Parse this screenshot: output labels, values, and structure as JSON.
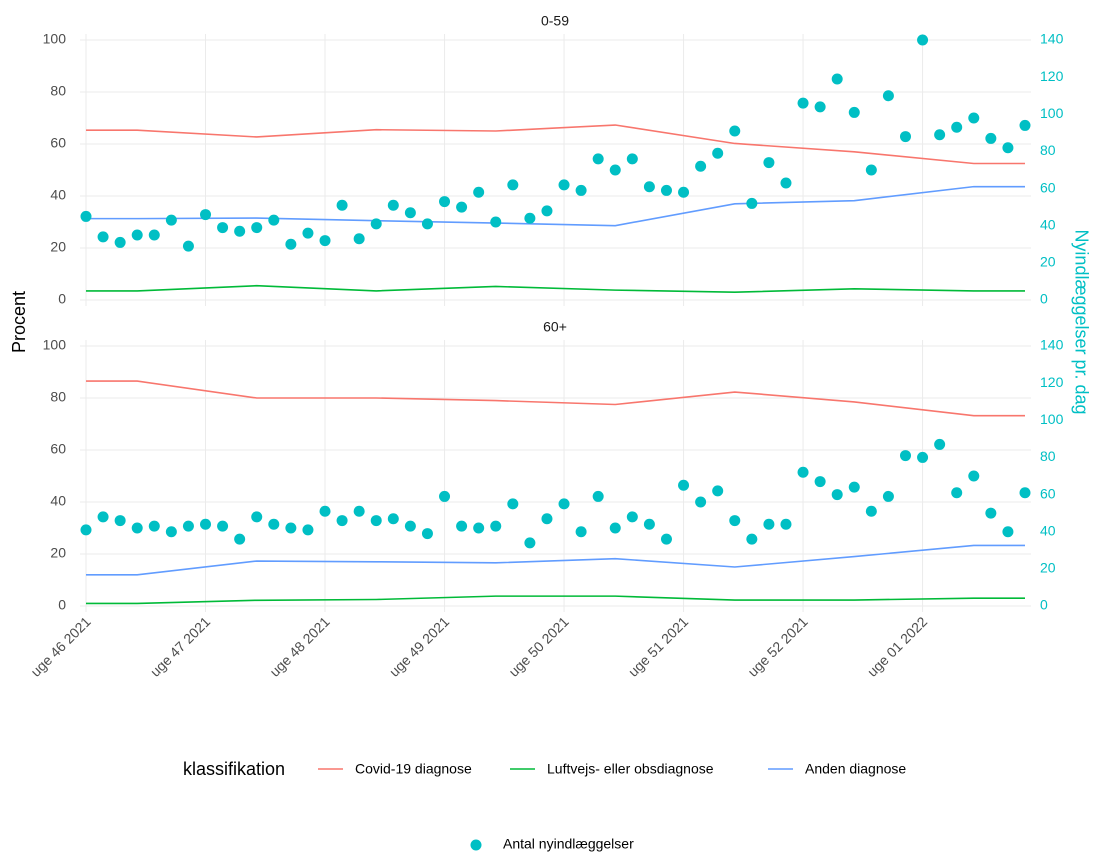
{
  "ylabel": "Procent",
  "y2label": "Nyindlæggelser pr. dag",
  "legend_title": "klassifikation",
  "xlim": [
    0,
    55
  ],
  "xticks": [
    {
      "value": 0,
      "label": "uge 46 2021"
    },
    {
      "value": 7,
      "label": "uge 47 2021"
    },
    {
      "value": 14,
      "label": "uge 48 2021"
    },
    {
      "value": 21,
      "label": "uge 49 2021"
    },
    {
      "value": 28,
      "label": "uge 50 2021"
    },
    {
      "value": 35,
      "label": "uge 51 2021"
    },
    {
      "value": 42,
      "label": "uge 52 2021"
    },
    {
      "value": 49,
      "label": "uge 01 2022"
    }
  ],
  "chart_data": [
    {
      "type": "line",
      "title": "0-59",
      "ylim": [
        0,
        100
      ],
      "yticks": [
        0,
        20,
        40,
        60,
        80,
        100
      ],
      "y2lim": [
        0,
        140
      ],
      "y2ticks": [
        0,
        20,
        40,
        60,
        80,
        100,
        120,
        140
      ],
      "grid": true,
      "series": [
        {
          "name": "Covid-19 diagnose",
          "color": "#F8766D",
          "x": [
            0,
            3,
            10,
            17,
            24,
            31,
            38,
            45,
            52,
            55
          ],
          "values": [
            65.3,
            65.3,
            62.7,
            65.5,
            65,
            67.3,
            60.2,
            57,
            52.5,
            52.5
          ]
        },
        {
          "name": "Luftvejs- eller obsdiagnose",
          "color": "#00BA38",
          "x": [
            0,
            3,
            10,
            17,
            24,
            31,
            38,
            45,
            52,
            55
          ],
          "values": [
            3.5,
            3.5,
            5.5,
            3.5,
            5.2,
            3.8,
            3,
            4.3,
            3.5,
            3.5
          ]
        },
        {
          "name": "Anden diagnose",
          "color": "#619CFF",
          "x": [
            0,
            3,
            10,
            17,
            24,
            31,
            38,
            45,
            52,
            55
          ],
          "values": [
            31.3,
            31.3,
            31.5,
            30.5,
            29.6,
            28.6,
            37,
            38.2,
            43.6,
            43.6
          ]
        },
        {
          "name": "Antal nyindlæggelser",
          "type": "scatter",
          "axis": "y2",
          "color": "#00BFC4",
          "x": [
            0,
            1,
            2,
            3,
            4,
            5,
            6,
            7,
            8,
            9,
            10,
            11,
            12,
            13,
            14,
            15,
            16,
            17,
            18,
            19,
            20,
            21,
            22,
            23,
            24,
            25,
            26,
            27,
            28,
            29,
            30,
            31,
            32,
            33,
            34,
            35,
            36,
            37,
            38,
            39,
            40,
            41,
            42,
            43,
            44,
            45,
            46,
            47,
            48,
            49,
            50,
            51,
            52,
            53,
            54,
            55
          ],
          "values": [
            45,
            34,
            31,
            35,
            35,
            43,
            29,
            46,
            39,
            37,
            39,
            43,
            30,
            36,
            32,
            51,
            33,
            41,
            51,
            47,
            41,
            53,
            50,
            58,
            42,
            62,
            44,
            48,
            62,
            59,
            76,
            70,
            76,
            61,
            59,
            58,
            72,
            79,
            91,
            52,
            74,
            63,
            106,
            104,
            119,
            101,
            70,
            110,
            88,
            140,
            89,
            93,
            98,
            87,
            82,
            94
          ]
        }
      ]
    },
    {
      "type": "line",
      "title": "60+",
      "ylim": [
        0,
        100
      ],
      "yticks": [
        0,
        20,
        40,
        60,
        80,
        100
      ],
      "y2lim": [
        0,
        140
      ],
      "y2ticks": [
        0,
        20,
        40,
        60,
        80,
        100,
        120,
        140
      ],
      "grid": true,
      "series": [
        {
          "name": "Covid-19 diagnose",
          "color": "#F8766D",
          "x": [
            0,
            3,
            10,
            17,
            24,
            31,
            38,
            45,
            52,
            55
          ],
          "values": [
            86.5,
            86.5,
            80,
            80,
            79,
            77.5,
            82.3,
            78.5,
            73.2,
            73.2
          ]
        },
        {
          "name": "Luftvejs- eller obsdiagnose",
          "color": "#00BA38",
          "x": [
            0,
            3,
            10,
            17,
            24,
            31,
            38,
            45,
            52,
            55
          ],
          "values": [
            1,
            1,
            2.2,
            2.5,
            3.8,
            3.8,
            2.3,
            2.3,
            3,
            3
          ]
        },
        {
          "name": "Anden diagnose",
          "color": "#619CFF",
          "x": [
            0,
            3,
            10,
            17,
            24,
            31,
            38,
            45,
            52,
            55
          ],
          "values": [
            12,
            12,
            17.3,
            17,
            16.6,
            18.2,
            15,
            19,
            23.3,
            23.3
          ]
        },
        {
          "name": "Antal nyindlæggelser",
          "type": "scatter",
          "axis": "y2",
          "color": "#00BFC4",
          "x": [
            0,
            1,
            2,
            3,
            4,
            5,
            6,
            7,
            8,
            9,
            10,
            11,
            12,
            13,
            14,
            15,
            16,
            17,
            18,
            19,
            20,
            21,
            22,
            23,
            24,
            25,
            26,
            27,
            28,
            29,
            30,
            31,
            32,
            33,
            34,
            35,
            36,
            37,
            38,
            39,
            40,
            41,
            42,
            43,
            44,
            45,
            46,
            47,
            48,
            49,
            50,
            51,
            52,
            53,
            54,
            55
          ],
          "values": [
            41,
            48,
            46,
            42,
            43,
            40,
            43,
            44,
            43,
            36,
            48,
            44,
            42,
            41,
            51,
            46,
            51,
            46,
            47,
            43,
            39,
            59,
            43,
            42,
            43,
            55,
            34,
            47,
            55,
            40,
            59,
            42,
            48,
            44,
            36,
            65,
            56,
            62,
            46,
            36,
            44,
            44,
            72,
            67,
            60,
            64,
            51,
            59,
            81,
            80,
            87,
            61,
            70,
            50,
            40,
            61
          ]
        }
      ]
    }
  ]
}
